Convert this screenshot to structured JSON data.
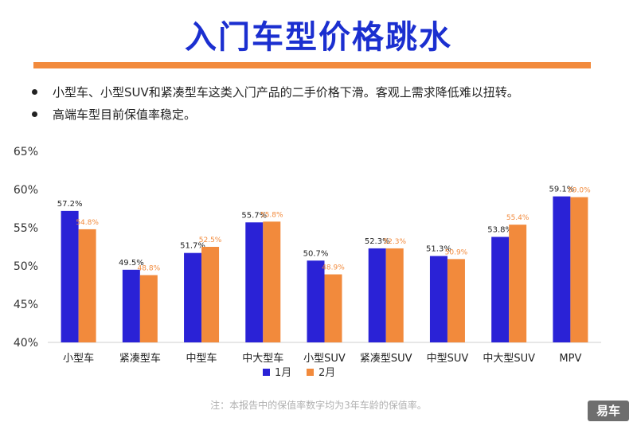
{
  "title": "入门车型价格跳水",
  "bullets": [
    "小型车、小型SUV和紧凑型车这类入门产品的二手价格下滑。客观上需求降低难以扭转。",
    "高端车型目前保值率稳定。"
  ],
  "note": "注：本报告中的保值率数字均为3年车龄的保值率。",
  "brand": "易车",
  "colors": {
    "series1": "#2a22d6",
    "series2": "#f28a3c",
    "title": "#1b2fd0",
    "rule": "#f28a3c"
  },
  "chart_data": {
    "type": "bar",
    "categories": [
      "小型车",
      "紧凑型车",
      "中型车",
      "中大型车",
      "小型SUV",
      "紧凑型SUV",
      "中型SUV",
      "中大型SUV",
      "MPV"
    ],
    "series": [
      {
        "name": "1月",
        "values": [
          57.2,
          49.5,
          51.7,
          55.7,
          50.7,
          52.3,
          51.3,
          53.8,
          59.1
        ],
        "labels": [
          "57.2%",
          "49.5%",
          "51.7%",
          "55.7%",
          "50.7%",
          "52.3%",
          "51.3%",
          "53.8%",
          "59.1%"
        ]
      },
      {
        "name": "2月",
        "values": [
          54.8,
          48.8,
          52.5,
          55.8,
          48.9,
          52.3,
          50.9,
          55.4,
          59.0
        ],
        "labels": [
          "54.8%",
          "48.8%",
          "52.5%",
          "55.8%",
          "48.9%",
          "52.3%",
          "50.9%",
          "55.4%",
          "59.0%"
        ]
      }
    ],
    "y_ticks": [
      40,
      45,
      50,
      55,
      60,
      65
    ],
    "y_tick_labels": [
      "40%",
      "45%",
      "50%",
      "55%",
      "60%",
      "65%"
    ],
    "ylim": [
      40,
      65
    ],
    "grid": false,
    "legend_position": "bottom-center",
    "xlabel": "",
    "ylabel": ""
  }
}
